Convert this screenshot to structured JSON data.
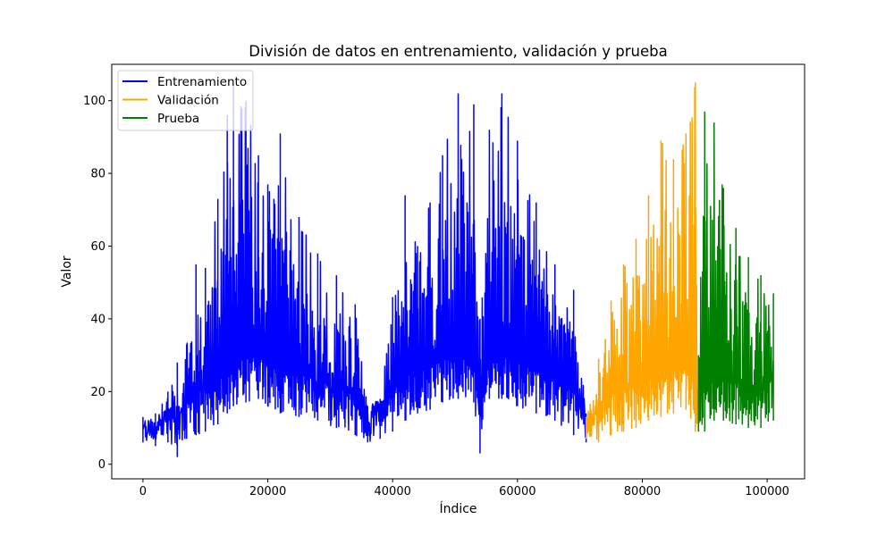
{
  "chart_data": {
    "type": "line",
    "title": "División de datos en entrenamiento, validación y prueba",
    "xlabel": "Índice",
    "ylabel": "Valor",
    "xlim": [
      -5000,
      106000
    ],
    "ylim": [
      -4,
      110
    ],
    "xticks": [
      0,
      20000,
      40000,
      60000,
      80000,
      100000
    ],
    "yticks": [
      0,
      20,
      40,
      60,
      80,
      100
    ],
    "grid": false,
    "legend_position": "top-left",
    "series": [
      {
        "name": "Entrenamiento",
        "color": "#0000ff",
        "x_range": [
          0,
          71000
        ],
        "envelope": [
          {
            "x": 0,
            "low": 6,
            "high": 13
          },
          {
            "x": 2000,
            "low": 5,
            "high": 14
          },
          {
            "x": 4000,
            "low": 6,
            "high": 20
          },
          {
            "x": 5500,
            "low": 2,
            "high": 28
          },
          {
            "x": 7000,
            "low": 7,
            "high": 33
          },
          {
            "x": 8500,
            "low": 8,
            "high": 55
          },
          {
            "x": 10000,
            "low": 9,
            "high": 54
          },
          {
            "x": 12000,
            "low": 11,
            "high": 73
          },
          {
            "x": 13500,
            "low": 14,
            "high": 96
          },
          {
            "x": 14500,
            "low": 16,
            "high": 104
          },
          {
            "x": 16500,
            "low": 17,
            "high": 100
          },
          {
            "x": 18500,
            "low": 18,
            "high": 85
          },
          {
            "x": 20000,
            "low": 16,
            "high": 77
          },
          {
            "x": 22000,
            "low": 14,
            "high": 91
          },
          {
            "x": 25000,
            "low": 13,
            "high": 68
          },
          {
            "x": 28000,
            "low": 12,
            "high": 58
          },
          {
            "x": 31000,
            "low": 10,
            "high": 52
          },
          {
            "x": 34000,
            "low": 8,
            "high": 44
          },
          {
            "x": 36000,
            "low": 6,
            "high": 16
          },
          {
            "x": 38000,
            "low": 7,
            "high": 18
          },
          {
            "x": 40000,
            "low": 9,
            "high": 46
          },
          {
            "x": 42000,
            "low": 12,
            "high": 74
          },
          {
            "x": 44000,
            "low": 14,
            "high": 60
          },
          {
            "x": 46000,
            "low": 15,
            "high": 72
          },
          {
            "x": 48000,
            "low": 17,
            "high": 85
          },
          {
            "x": 50500,
            "low": 18,
            "high": 102
          },
          {
            "x": 53000,
            "low": 17,
            "high": 99
          },
          {
            "x": 54000,
            "low": 3,
            "high": 40
          },
          {
            "x": 55500,
            "low": 18,
            "high": 92
          },
          {
            "x": 57500,
            "low": 18,
            "high": 102
          },
          {
            "x": 60000,
            "low": 16,
            "high": 89
          },
          {
            "x": 63000,
            "low": 14,
            "high": 72
          },
          {
            "x": 66000,
            "low": 12,
            "high": 55
          },
          {
            "x": 69000,
            "low": 8,
            "high": 48
          },
          {
            "x": 71000,
            "low": 6,
            "high": 14
          }
        ]
      },
      {
        "name": "Validación",
        "color": "#ffa500",
        "x_range": [
          71000,
          89000
        ],
        "envelope": [
          {
            "x": 71000,
            "low": 7,
            "high": 13
          },
          {
            "x": 73000,
            "low": 6,
            "high": 29
          },
          {
            "x": 75000,
            "low": 8,
            "high": 45
          },
          {
            "x": 77000,
            "low": 9,
            "high": 55
          },
          {
            "x": 79000,
            "low": 10,
            "high": 62
          },
          {
            "x": 81000,
            "low": 12,
            "high": 74
          },
          {
            "x": 83000,
            "low": 13,
            "high": 89
          },
          {
            "x": 85000,
            "low": 14,
            "high": 84
          },
          {
            "x": 87000,
            "low": 15,
            "high": 91
          },
          {
            "x": 88500,
            "low": 9,
            "high": 105
          },
          {
            "x": 89000,
            "low": 9,
            "high": 30
          }
        ]
      },
      {
        "name": "Prueba",
        "color": "#008000",
        "x_range": [
          89000,
          101000
        ],
        "envelope": [
          {
            "x": 89000,
            "low": 9,
            "high": 30
          },
          {
            "x": 90000,
            "low": 9,
            "high": 97
          },
          {
            "x": 91500,
            "low": 12,
            "high": 94
          },
          {
            "x": 93000,
            "low": 12,
            "high": 76
          },
          {
            "x": 95000,
            "low": 11,
            "high": 65
          },
          {
            "x": 97000,
            "low": 10,
            "high": 57
          },
          {
            "x": 99000,
            "low": 10,
            "high": 52
          },
          {
            "x": 101000,
            "low": 12,
            "high": 47
          }
        ]
      }
    ]
  }
}
